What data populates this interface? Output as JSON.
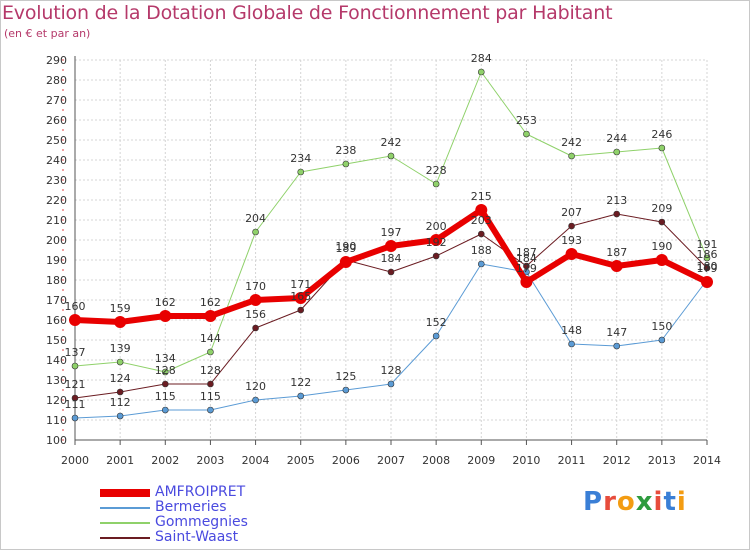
{
  "title": "Evolution de la Dotation Globale de Fonctionnement par Habitant",
  "subtitle": "(en € et par an)",
  "brand": [
    "P",
    "r",
    "o",
    "x",
    "i",
    "t",
    "i"
  ],
  "brand_colors": [
    "#3a7fd6",
    "#e74c3c",
    "#f39c12",
    "#2e9b3e",
    "#e74c3c",
    "#3a7fd6",
    "#f39c12"
  ],
  "chart_data": {
    "type": "line",
    "x": [
      "2000",
      "2001",
      "2002",
      "2003",
      "2004",
      "2005",
      "2006",
      "2007",
      "2008",
      "2009",
      "2010",
      "2011",
      "2012",
      "2013",
      "2014"
    ],
    "ylim": [
      100,
      290
    ],
    "yticks": [
      100,
      110,
      120,
      130,
      140,
      150,
      160,
      170,
      180,
      190,
      200,
      210,
      220,
      230,
      240,
      250,
      260,
      270,
      280,
      290
    ],
    "grid": true,
    "legend_position": "bottom-left",
    "series": [
      {
        "name": "Bermeries",
        "color": "#5b9bd5",
        "width": 1,
        "values": [
          111,
          112,
          115,
          115,
          120,
          122,
          125,
          128,
          152,
          188,
          184,
          148,
          147,
          150,
          180
        ],
        "labels": [
          "111",
          "112",
          "115",
          "115",
          "120",
          "122",
          "125",
          "128",
          "152",
          "188",
          "184",
          "148",
          "147",
          "150",
          "180"
        ]
      },
      {
        "name": "Gommegnies",
        "color": "#8fd16a",
        "width": 1,
        "values": [
          137,
          139,
          134,
          144,
          204,
          234,
          238,
          242,
          228,
          284,
          253,
          242,
          244,
          246,
          191
        ],
        "labels": [
          "137",
          "139",
          "134",
          "144",
          "204",
          "234",
          "238",
          "242",
          "228",
          "284",
          "253",
          "242",
          "244",
          "246",
          "191"
        ]
      },
      {
        "name": "Saint-Waast",
        "color": "#6b1c22",
        "width": 1,
        "values": [
          121,
          124,
          128,
          128,
          156,
          165,
          190,
          184,
          192,
          203,
          187,
          207,
          213,
          209,
          186
        ],
        "labels": [
          "121",
          "124",
          "128",
          "128",
          "156",
          "165",
          "190",
          "184",
          "192",
          "203",
          "187",
          "207",
          "213",
          "209",
          "186"
        ]
      },
      {
        "name": "AMFROIPRET",
        "color": "#e80000",
        "width": 6,
        "values": [
          160,
          159,
          162,
          162,
          170,
          171,
          189,
          197,
          200,
          215,
          179,
          193,
          187,
          190,
          179
        ],
        "labels": [
          "160",
          "159",
          "162",
          "162",
          "170",
          "171",
          "189",
          "197",
          "200",
          "215",
          "179",
          "193",
          "187",
          "190",
          "179"
        ]
      }
    ],
    "legend_order": [
      "AMFROIPRET",
      "Bermeries",
      "Gommegnies",
      "Saint-Waast"
    ]
  }
}
